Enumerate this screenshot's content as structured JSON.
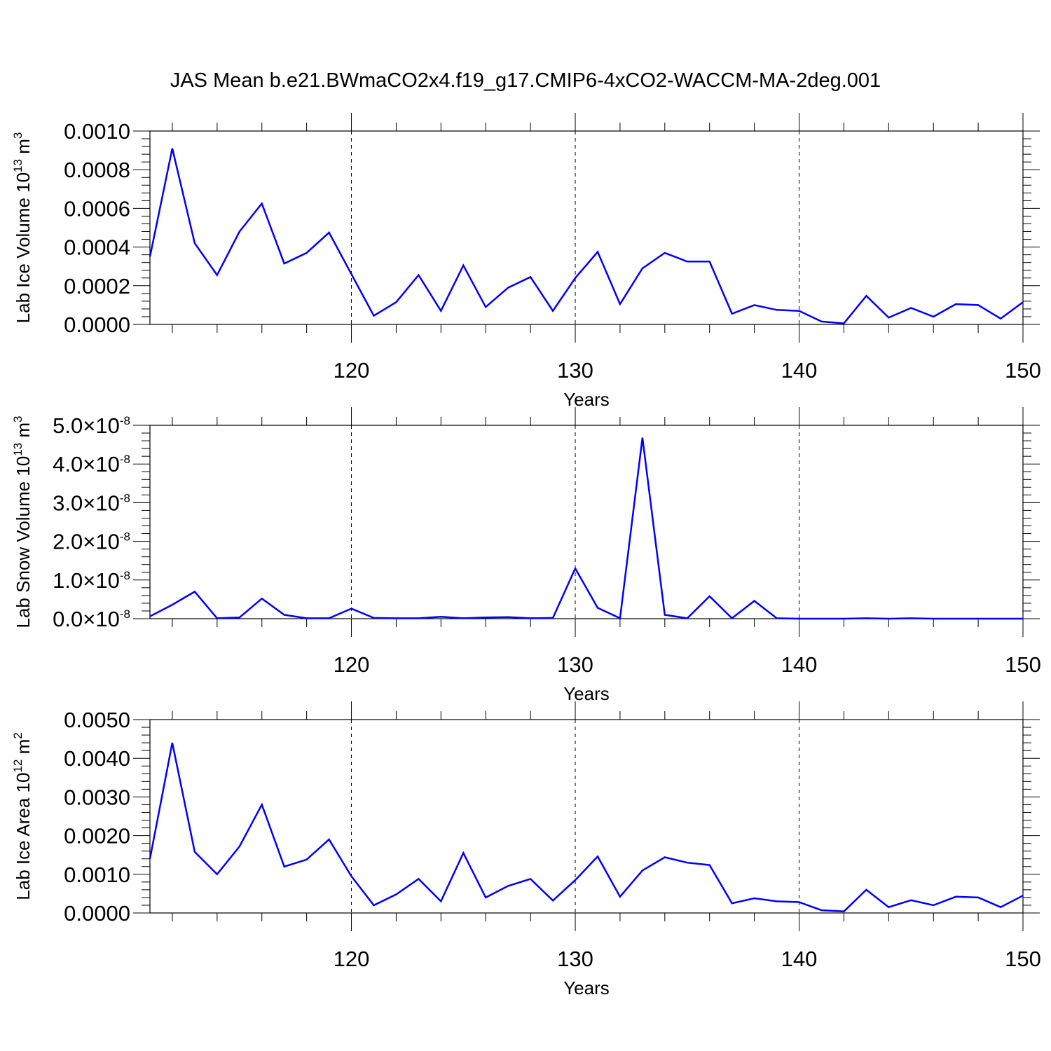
{
  "title": "JAS Mean b.e21.BWmaCO2x4.f19_g17.CMIP6-4xCO2-WACCM-MA-2deg.001",
  "line_color": "#0000ff",
  "chart_data": [
    {
      "type": "line",
      "ylabel_base": "Lab Ice Volume 10",
      "ylabel_exp": "13",
      "ylabel_unit": "m",
      "ylabel_unit_exp": "3",
      "xlabel": "Years",
      "xlim": [
        111,
        150
      ],
      "ylim": [
        0,
        0.001
      ],
      "x_ticks": [
        120,
        130,
        140,
        150
      ],
      "y_ticks": [
        "0.0000",
        "0.0002",
        "0.0004",
        "0.0006",
        "0.0008",
        "0.0010"
      ],
      "x": [
        111,
        112,
        113,
        114,
        115,
        116,
        117,
        118,
        119,
        120,
        121,
        122,
        123,
        124,
        125,
        126,
        127,
        128,
        129,
        130,
        131,
        132,
        133,
        134,
        135,
        136,
        137,
        138,
        139,
        140,
        141,
        142,
        143,
        144,
        145,
        146,
        147,
        148,
        149,
        150
      ],
      "values": [
        0.00035,
        0.00091,
        0.00042,
        0.000255,
        0.00048,
        0.000625,
        0.000315,
        0.00037,
        0.000475,
        0.00026,
        4.5e-05,
        0.000115,
        0.000255,
        7e-05,
        0.000305,
        9e-05,
        0.00019,
        0.000245,
        7e-05,
        0.00024,
        0.000375,
        0.000105,
        0.00029,
        0.00037,
        0.000325,
        0.000325,
        5.5e-05,
        0.0001,
        7.5e-05,
        7e-05,
        1.5e-05,
        5e-06,
        0.000148,
        3.5e-05,
        8.5e-05,
        4e-05,
        0.000105,
        0.0001,
        3e-05,
        0.000115
      ]
    },
    {
      "type": "line",
      "ylabel_base": "Lab Snow Volume 10",
      "ylabel_exp": "13",
      "ylabel_unit": "m",
      "ylabel_unit_exp": "3",
      "xlabel": "Years",
      "xlim": [
        111,
        150
      ],
      "ylim": [
        0,
        5e-08
      ],
      "x_ticks": [
        120,
        130,
        140,
        150
      ],
      "y_ticks": [
        "0.0",
        "1.0",
        "2.0",
        "3.0",
        "4.0",
        "5.0"
      ],
      "y_tick_suffix": "×10",
      "y_tick_exp": "-8",
      "x": [
        111,
        112,
        113,
        114,
        115,
        116,
        117,
        118,
        119,
        120,
        121,
        122,
        123,
        124,
        125,
        126,
        127,
        128,
        129,
        130,
        131,
        132,
        133,
        134,
        135,
        136,
        137,
        138,
        139,
        140,
        141,
        142,
        143,
        144,
        145,
        146,
        147,
        148,
        149,
        150
      ],
      "values": [
        6e-10,
        3.6e-09,
        7e-09,
        1e-10,
        3e-10,
        5.2e-09,
        1e-09,
        1e-10,
        1e-10,
        2.6e-09,
        2e-10,
        1e-10,
        1e-10,
        5e-10,
        1e-10,
        3e-10,
        4e-10,
        1e-10,
        2e-10,
        1.3e-08,
        2.8e-09,
        1e-10,
        4.68e-08,
        1e-09,
        1e-10,
        5.8e-09,
        1e-10,
        4.6e-09,
        1e-10,
        0.0,
        0.0,
        0.0,
        1e-10,
        0.0,
        1e-10,
        0.0,
        0.0,
        0.0,
        0.0,
        0.0
      ]
    },
    {
      "type": "line",
      "ylabel_base": "Lab Ice Area 10",
      "ylabel_exp": "12",
      "ylabel_unit": "m",
      "ylabel_unit_exp": "2",
      "xlabel": "Years",
      "xlim": [
        111,
        150
      ],
      "ylim": [
        0,
        0.005
      ],
      "x_ticks": [
        120,
        130,
        140,
        150
      ],
      "y_ticks": [
        "0.0000",
        "0.0010",
        "0.0020",
        "0.0030",
        "0.0040",
        "0.0050"
      ],
      "x": [
        111,
        112,
        113,
        114,
        115,
        116,
        117,
        118,
        119,
        120,
        121,
        122,
        123,
        124,
        125,
        126,
        127,
        128,
        129,
        130,
        131,
        132,
        133,
        134,
        135,
        136,
        137,
        138,
        139,
        140,
        141,
        142,
        143,
        144,
        145,
        146,
        147,
        148,
        149,
        150
      ],
      "values": [
        0.0014,
        0.0044,
        0.00158,
        0.001,
        0.00172,
        0.0028,
        0.0012,
        0.00138,
        0.0019,
        0.00095,
        0.0002,
        0.00048,
        0.00088,
        0.0003,
        0.00155,
        0.0004,
        0.0007,
        0.00088,
        0.00032,
        0.00085,
        0.00146,
        0.00042,
        0.0011,
        0.00144,
        0.0013,
        0.00124,
        0.00025,
        0.00038,
        0.0003,
        0.00028,
        7e-05,
        4e-05,
        0.0006,
        0.00015,
        0.00033,
        0.0002,
        0.00042,
        0.0004,
        0.00015,
        0.00045
      ]
    }
  ]
}
